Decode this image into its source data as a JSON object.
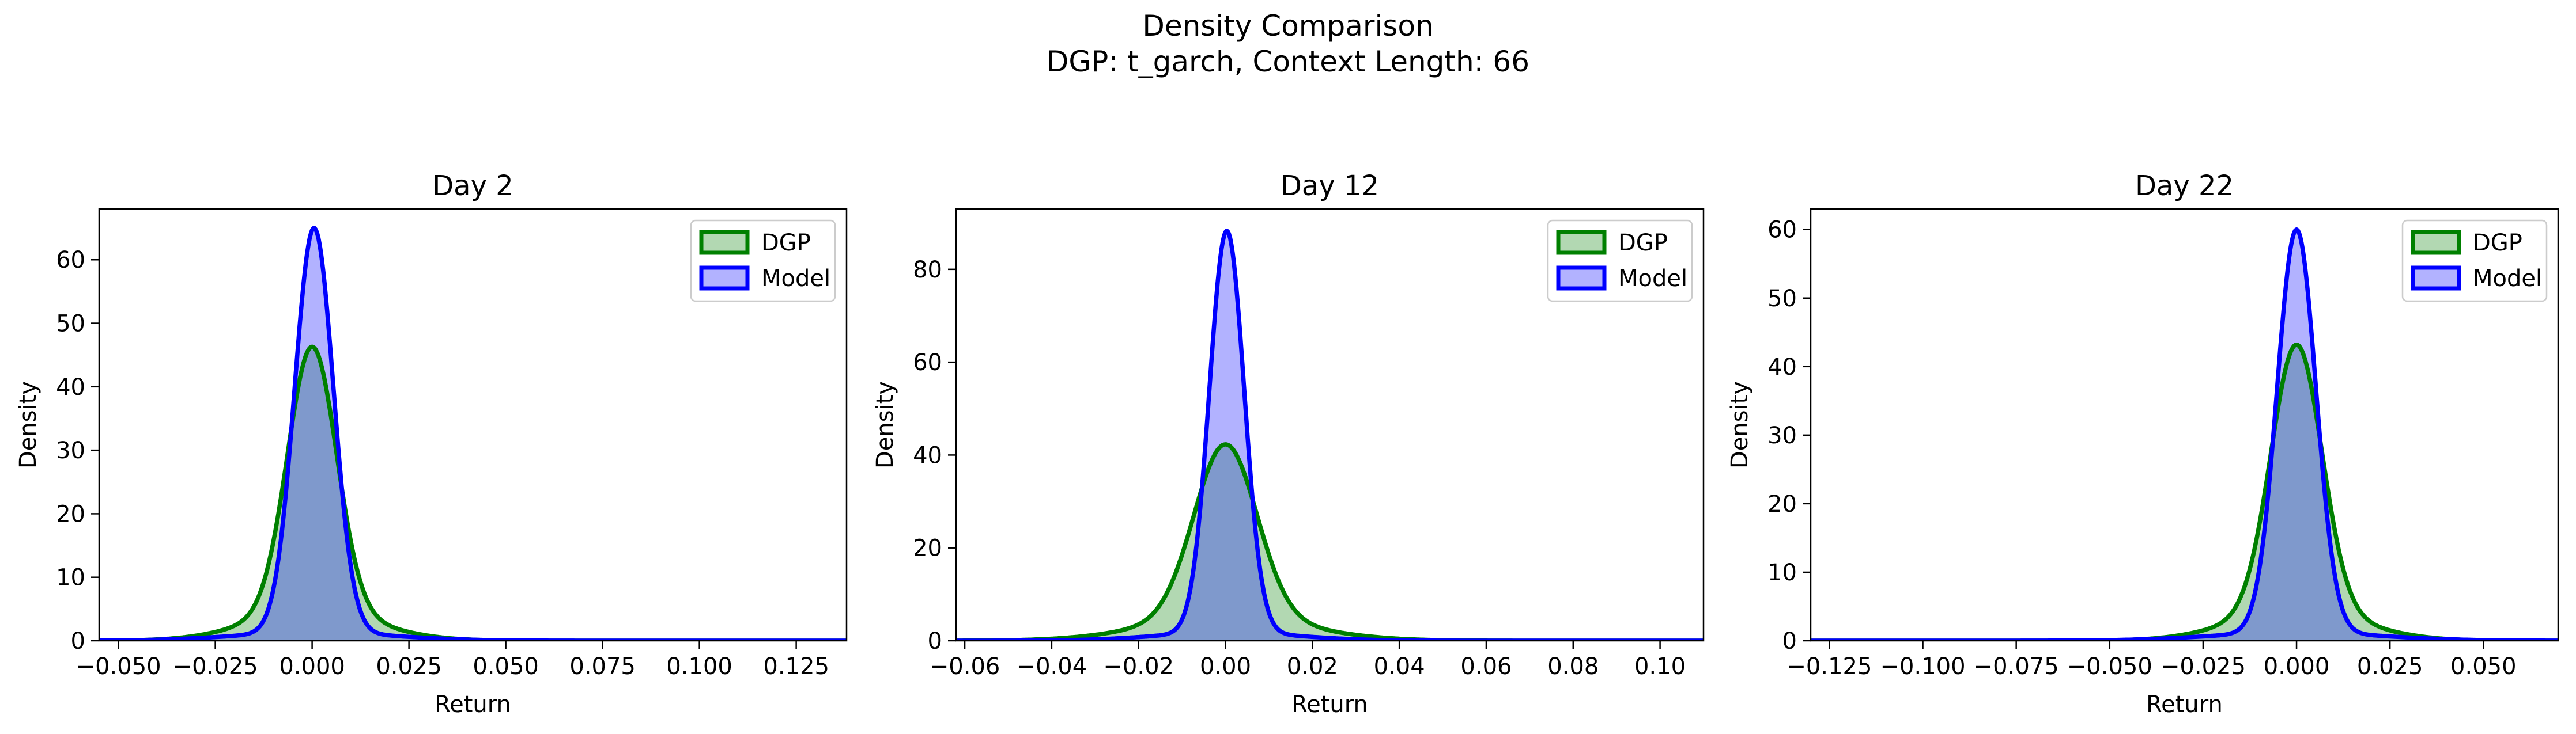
{
  "figure": {
    "title": "Density Comparison",
    "subtitle": "DGP: t_garch, Context Length: 66"
  },
  "colors": {
    "dgp_line": "#008000",
    "dgp_fill": "#b2d8b2",
    "model_line": "#0000ff",
    "model_fill": "#b2b2ff",
    "overlap_fill": "#7f99cc"
  },
  "chart_data": [
    {
      "type": "area",
      "title": "Day 2",
      "xlabel": "Return",
      "ylabel": "Density",
      "xlim": [
        -0.055,
        0.138
      ],
      "ylim": [
        0,
        68
      ],
      "xticks": [
        -0.05,
        -0.025,
        0.0,
        0.025,
        0.05,
        0.075,
        0.1,
        0.125
      ],
      "xtick_labels": [
        "−0.050",
        "−0.025",
        "0.000",
        "0.025",
        "0.050",
        "0.075",
        "0.100",
        "0.125"
      ],
      "yticks": [
        0,
        10,
        20,
        30,
        40,
        50,
        60
      ],
      "ytick_labels": [
        "0",
        "10",
        "20",
        "30",
        "40",
        "50",
        "60"
      ],
      "legend": {
        "position": "top-right",
        "entries": [
          "DGP",
          "Model"
        ]
      },
      "series": [
        {
          "name": "DGP",
          "peak_x": 0.0,
          "peak_density": 46.3,
          "sigma": 0.0063,
          "tail_weight": 0.1,
          "tail_sigma": 0.016
        },
        {
          "name": "Model",
          "peak_x": 0.0005,
          "peak_density": 65.0,
          "sigma": 0.005,
          "tail_weight": 0.02,
          "tail_sigma": 0.02
        }
      ]
    },
    {
      "type": "area",
      "title": "Day 12",
      "xlabel": "Return",
      "ylabel": "Density",
      "xlim": [
        -0.062,
        0.11
      ],
      "ylim": [
        0,
        93
      ],
      "xticks": [
        -0.06,
        -0.04,
        -0.02,
        0.0,
        0.02,
        0.04,
        0.06,
        0.08,
        0.1
      ],
      "xtick_labels": [
        "−0.06",
        "−0.04",
        "−0.02",
        "0.00",
        "0.02",
        "0.04",
        "0.06",
        "0.08",
        "0.10"
      ],
      "yticks": [
        0,
        20,
        40,
        60,
        80
      ],
      "ytick_labels": [
        "0",
        "20",
        "40",
        "60",
        "80"
      ],
      "legend": {
        "position": "top-right",
        "entries": [
          "DGP",
          "Model"
        ]
      },
      "series": [
        {
          "name": "DGP",
          "peak_x": 0.0,
          "peak_density": 42.3,
          "sigma": 0.0072,
          "tail_weight": 0.12,
          "tail_sigma": 0.018
        },
        {
          "name": "Model",
          "peak_x": 0.0003,
          "peak_density": 88.3,
          "sigma": 0.004,
          "tail_weight": 0.02,
          "tail_sigma": 0.016
        }
      ]
    },
    {
      "type": "area",
      "title": "Day 22",
      "xlabel": "Return",
      "ylabel": "Density",
      "xlim": [
        -0.13,
        0.07
      ],
      "ylim": [
        0,
        63
      ],
      "xticks": [
        -0.125,
        -0.1,
        -0.075,
        -0.05,
        -0.025,
        0.0,
        0.025,
        0.05
      ],
      "xtick_labels": [
        "−0.125",
        "−0.100",
        "−0.075",
        "−0.050",
        "−0.025",
        "0.000",
        "0.025",
        "0.050"
      ],
      "yticks": [
        0,
        10,
        20,
        30,
        40,
        50,
        60
      ],
      "ytick_labels": [
        "0",
        "10",
        "20",
        "30",
        "40",
        "50",
        "60"
      ],
      "legend": {
        "position": "top-right",
        "entries": [
          "DGP",
          "Model"
        ]
      },
      "series": [
        {
          "name": "DGP",
          "peak_x": 0.0,
          "peak_density": 43.2,
          "sigma": 0.0068,
          "tail_weight": 0.1,
          "tail_sigma": 0.017
        },
        {
          "name": "Model",
          "peak_x": 0.0,
          "peak_density": 60.0,
          "sigma": 0.0052,
          "tail_weight": 0.02,
          "tail_sigma": 0.022
        }
      ]
    }
  ]
}
